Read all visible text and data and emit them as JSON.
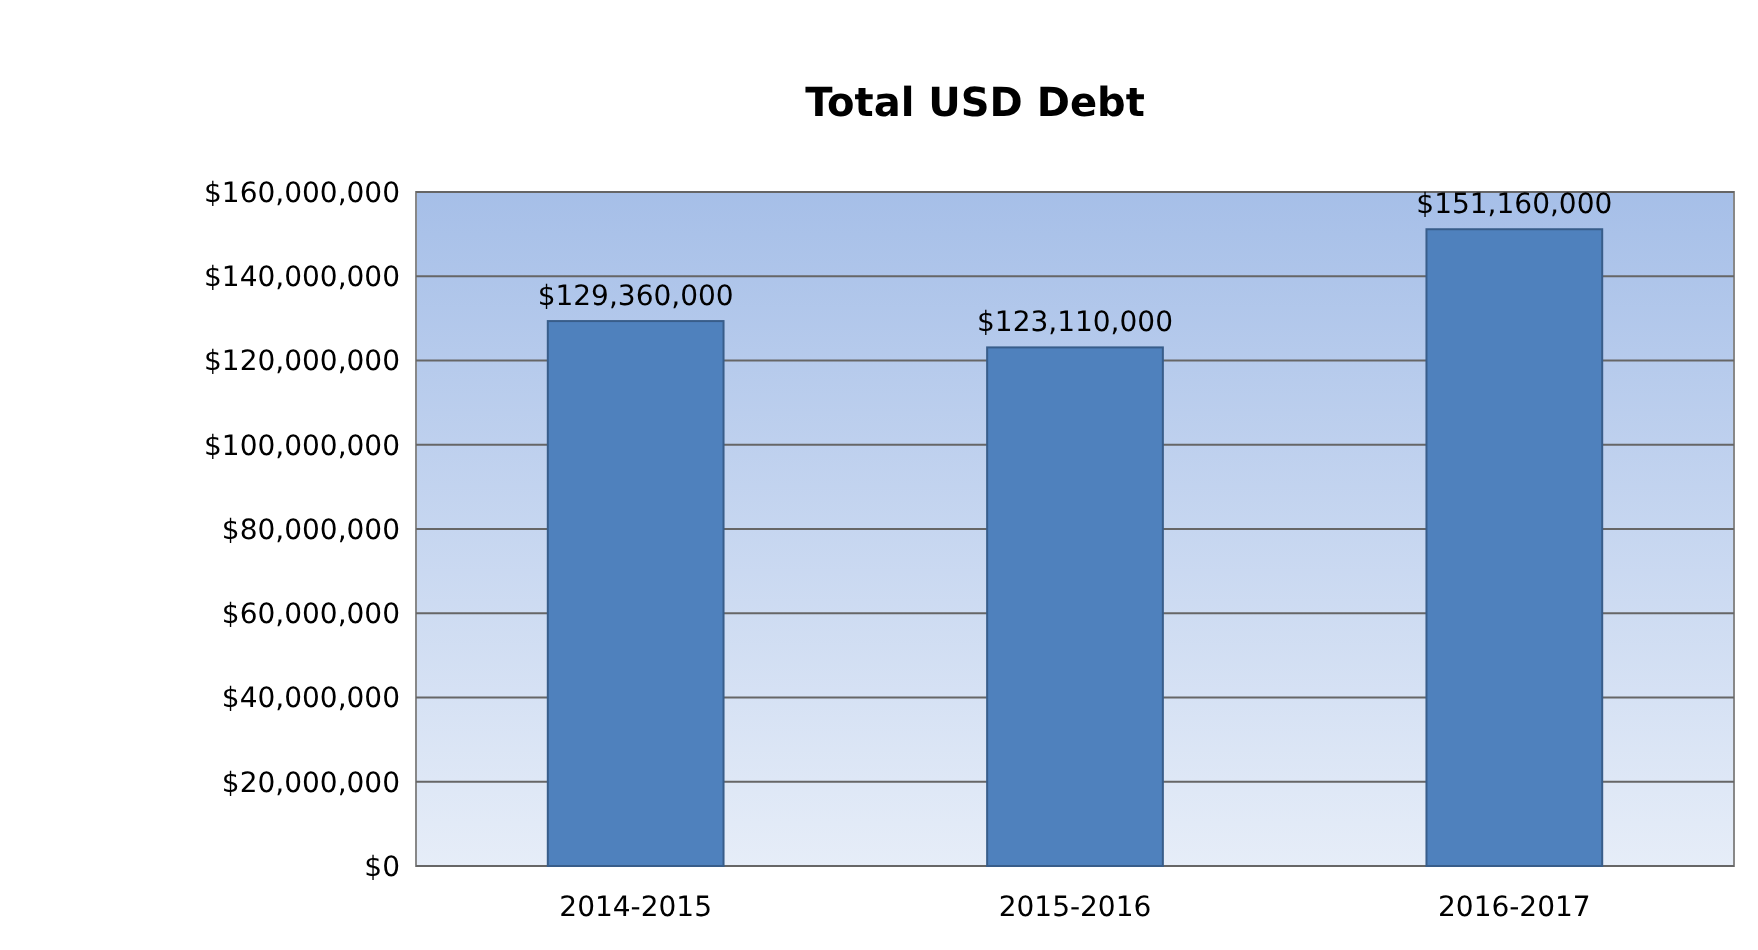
{
  "chart_data": {
    "type": "bar",
    "title": "Total USD Debt",
    "categories": [
      "2014-2015",
      "2015-2016",
      "2016-2017"
    ],
    "values": [
      129360000,
      123110000,
      151160000
    ],
    "value_labels": [
      "$129,360,000",
      "$123,110,000",
      "$151,160,000"
    ],
    "color": "#4f81bd",
    "ylim": [
      0,
      160000000
    ],
    "yticks": [
      {
        "value": 0,
        "label": "$0"
      },
      {
        "value": 20000000,
        "label": "$20,000,000"
      },
      {
        "value": 40000000,
        "label": "$40,000,000"
      },
      {
        "value": 60000000,
        "label": "$60,000,000"
      },
      {
        "value": 80000000,
        "label": "$80,000,000"
      },
      {
        "value": 100000000,
        "label": "$100,000,000"
      },
      {
        "value": 120000000,
        "label": "$120,000,000"
      },
      {
        "value": 140000000,
        "label": "$140,000,000"
      },
      {
        "value": 160000000,
        "label": "$160,000,000"
      }
    ],
    "grid": "y"
  }
}
